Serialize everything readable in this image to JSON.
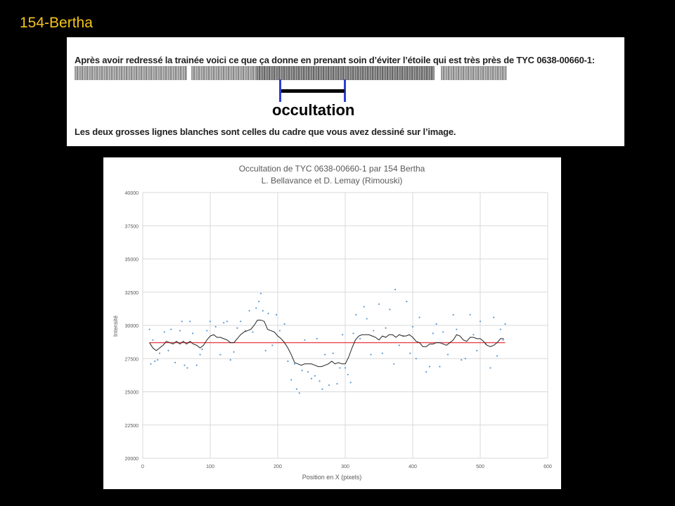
{
  "slide_title": "154-Bertha",
  "note": {
    "line1": "Après avoir redressé la trainée voici ce que ça donne en prenant soin d’éviter l’étoile qui est très près de TYC 0638-00660-1:",
    "label": "occultation",
    "line2": "Les deux grosses lignes blanches sont celles du cadre que vous avez dessiné sur l’image."
  },
  "chart_data": {
    "type": "scatter",
    "title": "Occultation de TYC 0638-00660-1 par 154 Bertha",
    "subtitle": "L. Bellavance et D. Lemay (Rimouski)",
    "xlabel": "Position en X (pixels)",
    "ylabel": "Intensité",
    "xlim": [
      0,
      600
    ],
    "ylim": [
      20000,
      40000
    ],
    "xticks": [
      0,
      100,
      200,
      300,
      400,
      500,
      600
    ],
    "yticks": [
      20000,
      22500,
      25000,
      27500,
      30000,
      32500,
      35000,
      37500,
      40000
    ],
    "grid": true,
    "colors": {
      "points": "#5b9bd5",
      "average": "#222222",
      "reference": "#e8424a"
    },
    "reference_line": {
      "y": 28700,
      "x": [
        10,
        537
      ]
    },
    "moving_average": {
      "x": [
        10,
        15,
        20,
        25,
        30,
        35,
        40,
        45,
        50,
        55,
        60,
        65,
        70,
        75,
        80,
        85,
        90,
        95,
        100,
        105,
        110,
        115,
        120,
        125,
        130,
        135,
        140,
        145,
        150,
        155,
        160,
        165,
        170,
        175,
        180,
        185,
        190,
        195,
        200,
        205,
        210,
        215,
        220,
        225,
        230,
        235,
        240,
        245,
        250,
        255,
        260,
        265,
        270,
        275,
        280,
        285,
        290,
        295,
        300,
        305,
        310,
        315,
        320,
        325,
        330,
        335,
        340,
        345,
        350,
        355,
        360,
        365,
        370,
        375,
        380,
        385,
        390,
        395,
        400,
        405,
        410,
        415,
        420,
        425,
        430,
        435,
        440,
        445,
        450,
        455,
        460,
        465,
        470,
        475,
        480,
        485,
        490,
        495,
        500,
        505,
        510,
        515,
        520,
        525,
        530,
        535
      ],
      "y": [
        28700,
        28300,
        28100,
        28300,
        28500,
        28800,
        28700,
        28600,
        28800,
        28600,
        28800,
        28600,
        28800,
        28600,
        28500,
        28300,
        28500,
        28900,
        29200,
        29300,
        29100,
        29100,
        29000,
        28900,
        28700,
        28700,
        29000,
        29300,
        29500,
        29600,
        29700,
        30000,
        30400,
        30400,
        30300,
        29700,
        29600,
        29500,
        29200,
        29000,
        28700,
        28300,
        27800,
        27200,
        27100,
        27000,
        27100,
        27100,
        27100,
        27000,
        26900,
        26900,
        27000,
        27100,
        27300,
        27100,
        27200,
        27100,
        27100,
        27600,
        28300,
        28900,
        29200,
        29300,
        29300,
        29300,
        29200,
        29100,
        28900,
        29200,
        29100,
        29300,
        29300,
        29100,
        29300,
        29200,
        29200,
        29300,
        29100,
        28800,
        28700,
        28400,
        28400,
        28600,
        28600,
        28700,
        28700,
        28600,
        28500,
        28700,
        28900,
        29300,
        29200,
        28900,
        28800,
        29100,
        29100,
        29000,
        29000,
        28800,
        28500,
        28400,
        28500,
        28700,
        29000,
        29000
      ]
    },
    "points": [
      [
        10,
        29700
      ],
      [
        12,
        27100
      ],
      [
        15,
        28900
      ],
      [
        18,
        27300
      ],
      [
        22,
        27400
      ],
      [
        25,
        27900
      ],
      [
        32,
        29500
      ],
      [
        38,
        28100
      ],
      [
        42,
        29700
      ],
      [
        48,
        27200
      ],
      [
        55,
        29600
      ],
      [
        58,
        30300
      ],
      [
        62,
        27000
      ],
      [
        66,
        26800
      ],
      [
        70,
        30300
      ],
      [
        74,
        29400
      ],
      [
        80,
        27000
      ],
      [
        85,
        27800
      ],
      [
        88,
        28200
      ],
      [
        95,
        29600
      ],
      [
        100,
        30300
      ],
      [
        108,
        29900
      ],
      [
        115,
        27800
      ],
      [
        120,
        30200
      ],
      [
        125,
        30300
      ],
      [
        130,
        27400
      ],
      [
        135,
        28000
      ],
      [
        140,
        29800
      ],
      [
        145,
        30300
      ],
      [
        152,
        29600
      ],
      [
        158,
        31100
      ],
      [
        163,
        29500
      ],
      [
        168,
        31300
      ],
      [
        172,
        31800
      ],
      [
        175,
        32400
      ],
      [
        178,
        31100
      ],
      [
        182,
        28100
      ],
      [
        186,
        30900
      ],
      [
        192,
        28500
      ],
      [
        198,
        30800
      ],
      [
        203,
        29600
      ],
      [
        210,
        30100
      ],
      [
        215,
        27300
      ],
      [
        220,
        25900
      ],
      [
        225,
        27100
      ],
      [
        228,
        25200
      ],
      [
        232,
        24900
      ],
      [
        236,
        26600
      ],
      [
        240,
        28900
      ],
      [
        245,
        26500
      ],
      [
        250,
        26000
      ],
      [
        255,
        26200
      ],
      [
        258,
        29000
      ],
      [
        262,
        25800
      ],
      [
        266,
        25200
      ],
      [
        270,
        27800
      ],
      [
        276,
        25500
      ],
      [
        282,
        27900
      ],
      [
        288,
        25600
      ],
      [
        292,
        26800
      ],
      [
        296,
        29300
      ],
      [
        300,
        26800
      ],
      [
        304,
        26300
      ],
      [
        308,
        25700
      ],
      [
        312,
        29400
      ],
      [
        316,
        30800
      ],
      [
        322,
        29000
      ],
      [
        328,
        31400
      ],
      [
        332,
        30500
      ],
      [
        338,
        27800
      ],
      [
        342,
        29600
      ],
      [
        350,
        31600
      ],
      [
        355,
        27900
      ],
      [
        360,
        29800
      ],
      [
        366,
        31200
      ],
      [
        372,
        27100
      ],
      [
        374,
        32700
      ],
      [
        380,
        28500
      ],
      [
        386,
        29200
      ],
      [
        391,
        31800
      ],
      [
        396,
        27900
      ],
      [
        400,
        29900
      ],
      [
        405,
        27500
      ],
      [
        410,
        30600
      ],
      [
        420,
        26500
      ],
      [
        425,
        26900
      ],
      [
        430,
        29400
      ],
      [
        435,
        30100
      ],
      [
        440,
        26900
      ],
      [
        445,
        29500
      ],
      [
        452,
        27800
      ],
      [
        460,
        30800
      ],
      [
        465,
        29700
      ],
      [
        472,
        27400
      ],
      [
        478,
        27500
      ],
      [
        485,
        30800
      ],
      [
        490,
        29300
      ],
      [
        495,
        28100
      ],
      [
        500,
        30300
      ],
      [
        508,
        28600
      ],
      [
        515,
        26800
      ],
      [
        520,
        30600
      ],
      [
        525,
        27700
      ],
      [
        530,
        29700
      ],
      [
        534,
        28900
      ],
      [
        537,
        30100
      ]
    ]
  }
}
